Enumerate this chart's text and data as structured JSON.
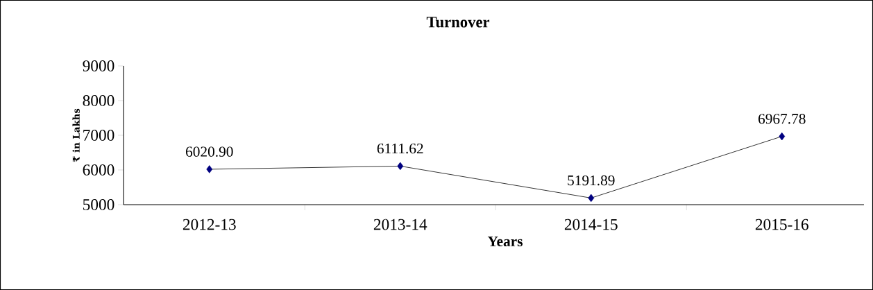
{
  "chart_data": {
    "type": "line",
    "title": "Turnover",
    "xlabel": "Years",
    "ylabel": "₹ in Lakhs",
    "categories": [
      "2012-13",
      "2013-14",
      "2014-15",
      "2015-16"
    ],
    "values": [
      6020.9,
      6111.62,
      5191.89,
      6967.78
    ],
    "value_labels": [
      "6020.90",
      "6111.62",
      "5191.89",
      "6967.78"
    ],
    "color": "#000080",
    "marker": "diamond",
    "line_style": "solid",
    "ylim": [
      5000,
      9000
    ],
    "yticks": [
      5000,
      6000,
      7000,
      8000,
      9000
    ],
    "grid": false
  }
}
